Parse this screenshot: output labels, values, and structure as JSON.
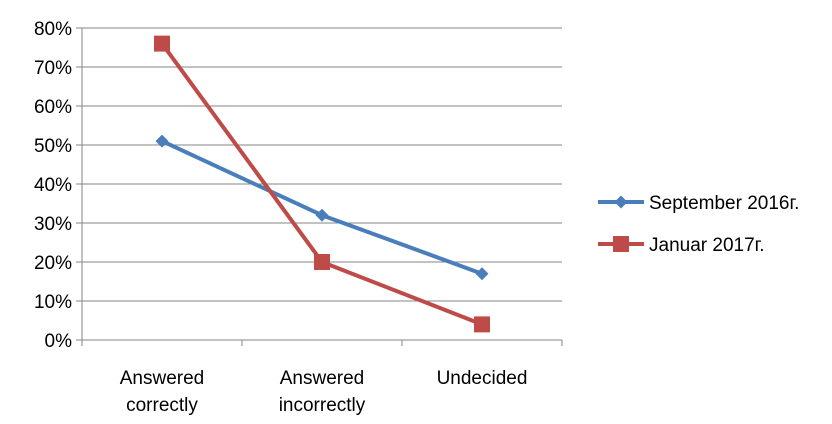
{
  "chart_data": {
    "type": "line",
    "title": "",
    "xlabel": "",
    "ylabel": "",
    "categories": [
      [
        "Answered",
        "correctly"
      ],
      [
        "Answered",
        "incorrectly"
      ],
      [
        "Undecided"
      ]
    ],
    "ylim": [
      0,
      80
    ],
    "yticks": [
      0,
      10,
      20,
      30,
      40,
      50,
      60,
      70,
      80
    ],
    "ytick_suffix": "%",
    "grid": true,
    "legend": "right",
    "series": [
      {
        "name": "September 2016г.",
        "values": [
          51,
          32,
          17
        ],
        "color": "#4a7ebb",
        "marker": "diamond"
      },
      {
        "name": "Januar 2017г.",
        "values": [
          76,
          20,
          4
        ],
        "color": "#be4b48",
        "marker": "square"
      }
    ]
  }
}
